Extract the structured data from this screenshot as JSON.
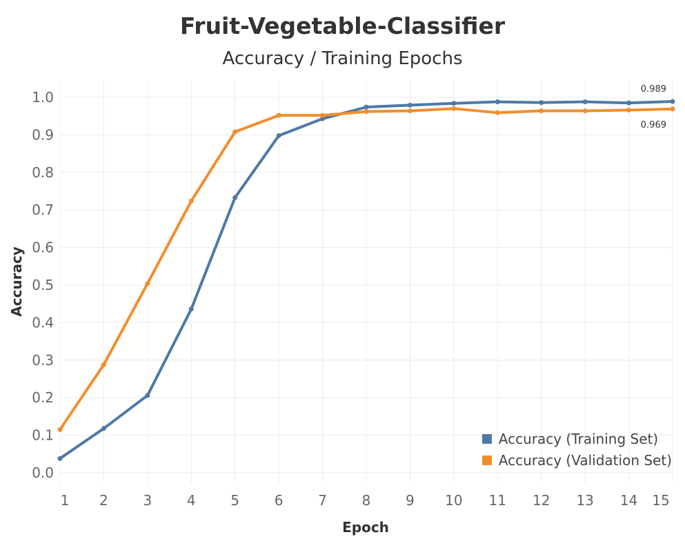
{
  "chart_data": {
    "type": "line",
    "title": "Fruit-Vegetable-Classifier",
    "subtitle": "Accuracy / Training Epochs",
    "xlabel": "Epoch",
    "ylabel": "Accuracy",
    "x": [
      1,
      2,
      3,
      4,
      5,
      6,
      7,
      8,
      9,
      10,
      11,
      12,
      13,
      14,
      15
    ],
    "xlim": [
      1,
      15
    ],
    "ylim": [
      0.0,
      1.0
    ],
    "yticks": [
      0.0,
      0.1,
      0.2,
      0.3,
      0.4,
      0.5,
      0.6,
      0.7,
      0.8,
      0.9,
      1.0
    ],
    "grid": true,
    "legend_position": "bottom-right",
    "series": [
      {
        "name": "Accuracy (Training Set)",
        "color": "#4e79a7",
        "values": [
          0.038,
          0.118,
          0.206,
          0.436,
          0.733,
          0.898,
          0.943,
          0.974,
          0.979,
          0.984,
          0.988,
          0.986,
          0.988,
          0.985,
          0.989
        ],
        "end_label": "0.989"
      },
      {
        "name": "Accuracy (Validation Set)",
        "color": "#f28e2b",
        "values": [
          0.115,
          0.288,
          0.504,
          0.724,
          0.908,
          0.952,
          0.952,
          0.962,
          0.964,
          0.97,
          0.959,
          0.964,
          0.964,
          0.966,
          0.969
        ],
        "end_label": "0.969"
      }
    ]
  }
}
